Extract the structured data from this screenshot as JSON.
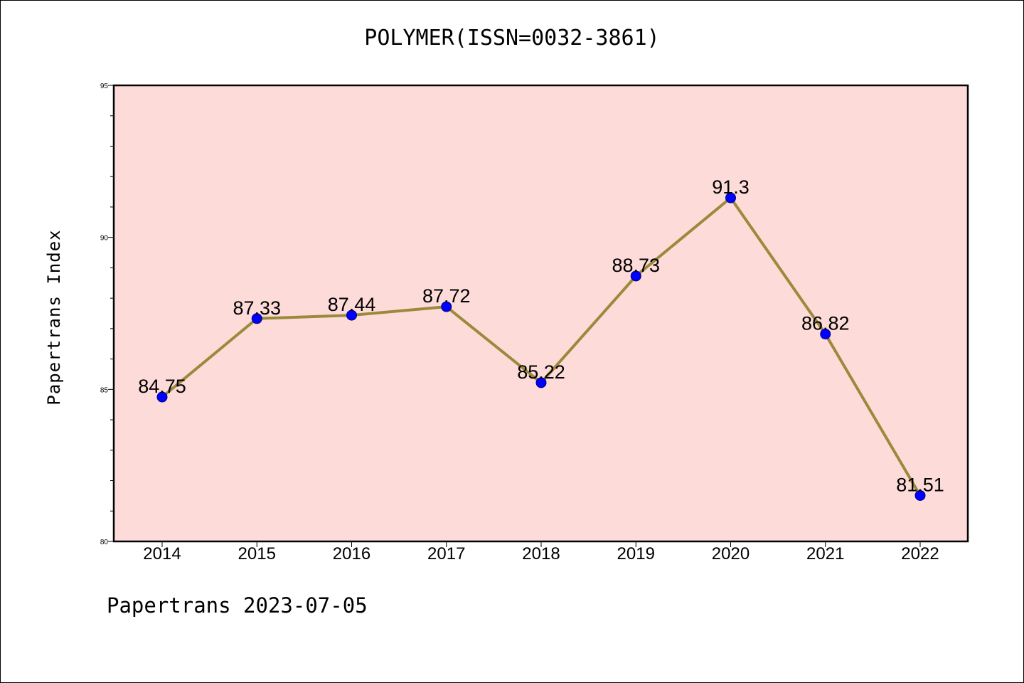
{
  "chart_data": {
    "type": "line",
    "title": "POLYMER(ISSN=0032-3861)",
    "xlabel": "",
    "ylabel": "Papertrans Index",
    "x": [
      "2014",
      "2015",
      "2016",
      "2017",
      "2018",
      "2019",
      "2020",
      "2021",
      "2022"
    ],
    "series": [
      {
        "values": [
          84.75,
          87.33,
          87.44,
          87.72,
          85.22,
          88.73,
          91.3,
          86.82,
          81.51
        ],
        "labels": [
          "84.75",
          "87.33",
          "87.44",
          "87.72",
          "85.22",
          "88.73",
          "91.3",
          "86.82",
          "81.51"
        ]
      }
    ],
    "ylim": [
      80,
      95
    ],
    "yticks": [
      "80",
      "85",
      "90",
      "95"
    ],
    "grid": false,
    "legend": "none",
    "colors": {
      "plot_background": "#fddbd8",
      "line": "#9b8a3c",
      "marker": "#0000ff",
      "marker_edge": "#000080"
    }
  },
  "footer": {
    "text": "Papertrans 2023-07-05"
  }
}
